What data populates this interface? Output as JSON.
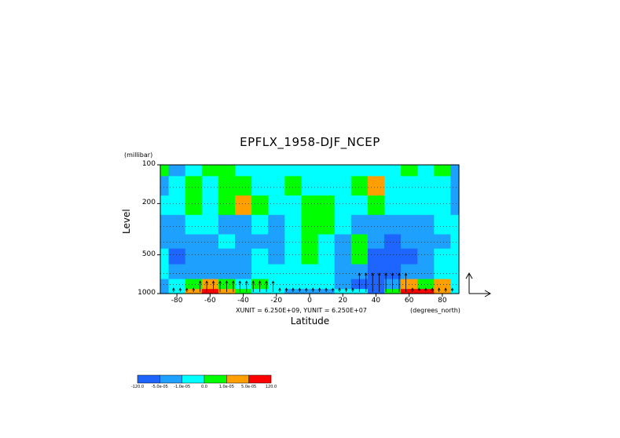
{
  "chart_data": {
    "type": "heatmap",
    "title": "EPFLX_1958-DJF_NCEP",
    "y_units": "(millibar)",
    "ylabel": "Level",
    "xlabel": "Latitude",
    "x_units": "(degrees_north)",
    "vector_scale_note": "XUNIT = 6.250E+09, YUNIT = 6.250E+07",
    "x_ticks": [
      -80,
      -60,
      -40,
      -20,
      0,
      20,
      40,
      60,
      80
    ],
    "x_tick_labels": [
      "-80",
      "-60",
      "-40",
      "-20",
      "0",
      "20",
      "40",
      "60",
      "80"
    ],
    "y_ticks": [
      100,
      200,
      500,
      1000
    ],
    "y_tick_labels": [
      "100",
      "200",
      "500",
      "1000"
    ],
    "xlim": [
      -90,
      90
    ],
    "ylim": [
      1000,
      100
    ],
    "y_scale": "log",
    "grid": "dotted horizontal",
    "colorbar": {
      "labels": [
        "-120.0",
        "-5.0e-05",
        "-1.0e-05",
        "0.0",
        "1.0e-05",
        "5.0e-05",
        "120.0"
      ],
      "colors": [
        "#1e64ff",
        "#1ea0ff",
        "#00ffff",
        "#00ff00",
        "#ffa000",
        "#ff0000"
      ]
    },
    "field_levels_lat": [
      -90,
      -80,
      -70,
      -60,
      -50,
      -40,
      -30,
      -20,
      -10,
      0,
      10,
      20,
      30,
      40,
      50,
      60,
      70,
      80,
      90
    ],
    "field_levels_p": [
      100,
      150,
      200,
      300,
      400,
      500,
      700,
      850,
      1000
    ],
    "field_class": [
      [
        3,
        1,
        2,
        3,
        3,
        2,
        2,
        2,
        2,
        2,
        2,
        2,
        2,
        2,
        2,
        3,
        2,
        3,
        1
      ],
      [
        1,
        2,
        3,
        2,
        3,
        3,
        2,
        2,
        3,
        2,
        2,
        2,
        3,
        4,
        2,
        2,
        2,
        2,
        1
      ],
      [
        2,
        2,
        3,
        2,
        3,
        4,
        3,
        2,
        2,
        3,
        3,
        2,
        2,
        3,
        2,
        2,
        2,
        2,
        1
      ],
      [
        1,
        1,
        2,
        2,
        1,
        1,
        2,
        1,
        2,
        3,
        3,
        2,
        1,
        1,
        1,
        1,
        1,
        2,
        2
      ],
      [
        1,
        1,
        1,
        1,
        2,
        1,
        1,
        1,
        2,
        3,
        2,
        1,
        3,
        1,
        0,
        1,
        1,
        1,
        2
      ],
      [
        2,
        0,
        1,
        1,
        1,
        1,
        2,
        1,
        2,
        3,
        2,
        1,
        3,
        0,
        0,
        0,
        1,
        2,
        2
      ],
      [
        2,
        1,
        1,
        1,
        1,
        1,
        2,
        2,
        2,
        2,
        2,
        1,
        1,
        0,
        0,
        1,
        1,
        2,
        2
      ],
      [
        1,
        2,
        3,
        4,
        3,
        2,
        3,
        2,
        2,
        2,
        2,
        1,
        0,
        0,
        1,
        4,
        3,
        4,
        2
      ],
      [
        1,
        2,
        4,
        5,
        4,
        3,
        2,
        2,
        1,
        1,
        1,
        2,
        2,
        0,
        3,
        5,
        5,
        4,
        2
      ]
    ]
  }
}
